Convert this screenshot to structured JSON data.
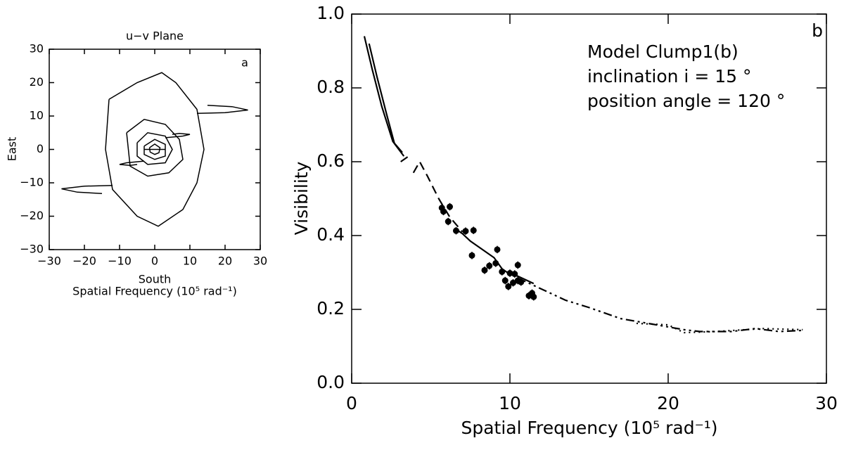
{
  "chart_data": [
    {
      "type": "line",
      "title": "u−v Plane",
      "label": "a",
      "xlabel": "South",
      "xlabel2": "Spatial Frequency (10⁵ rad⁻¹)",
      "ylabel": "East",
      "color": "#000000",
      "xlim": [
        -30,
        30
      ],
      "ylim": [
        -30,
        30
      ],
      "xticks": [
        {
          "value": -30,
          "label": "−30"
        },
        {
          "value": -20,
          "label": "−20"
        },
        {
          "value": -10,
          "label": "−10"
        },
        0,
        10,
        20,
        30
      ],
      "yticks": [
        {
          "value": -30,
          "label": "−30"
        },
        {
          "value": -20,
          "label": "−20"
        },
        {
          "value": -10,
          "label": "−10"
        },
        0,
        10,
        20,
        30
      ],
      "series": [
        {
          "x": [
            -13,
            -5,
            2,
            6,
            12,
            14,
            12,
            8,
            1,
            -5,
            -12,
            -14,
            -13
          ],
          "values": [
            15,
            20,
            23,
            20,
            12,
            0,
            -10,
            -18,
            -23,
            -20,
            -12,
            0,
            15
          ]
        },
        {
          "x": [
            -8,
            -3,
            3,
            7,
            8,
            4,
            -2,
            -7,
            -8
          ],
          "values": [
            5,
            9,
            7.5,
            3,
            -3,
            -7,
            -8,
            -5,
            5
          ]
        },
        {
          "x": [
            -5,
            -2,
            3,
            5,
            3,
            -2,
            -5,
            -5
          ],
          "values": [
            2,
            5,
            4,
            0,
            -4,
            -4.5,
            -2,
            2
          ]
        },
        {
          "x": [
            -3,
            0,
            3,
            3,
            0,
            -3,
            -3
          ],
          "values": [
            1,
            3,
            1.5,
            -2,
            -3,
            -1.5,
            1
          ]
        },
        {
          "x": [
            -1.5,
            0,
            1.5,
            1.2,
            0,
            -1.3,
            -1.5
          ],
          "values": [
            0.5,
            1.6,
            0.5,
            -1,
            -1.5,
            -0.8,
            0.5
          ]
        },
        {
          "x": [
            12,
            20,
            26.5,
            22,
            15
          ],
          "values": [
            10.8,
            11,
            11.8,
            12.8,
            13.2
          ]
        },
        {
          "x": [
            -12,
            -20,
            -26.5,
            -22,
            -15
          ],
          "values": [
            -10.8,
            -11,
            -11.8,
            -12.8,
            -13.2
          ]
        },
        {
          "x": [
            3,
            8,
            10,
            7,
            5
          ],
          "values": [
            3.5,
            4,
            4.5,
            4.8,
            4.5
          ]
        },
        {
          "x": [
            -3,
            -8,
            -10,
            -7,
            -5
          ],
          "values": [
            -3.5,
            -4,
            -4.5,
            -4.8,
            -4.5
          ]
        },
        {
          "x": [
            -3,
            3
          ],
          "values": [
            0,
            0
          ]
        }
      ]
    },
    {
      "type": "scatter",
      "label": "b",
      "annotations": [
        "Model Clump1(b)",
        "inclination i  =  15 °",
        "position angle  =  120 °"
      ],
      "xlabel": "Spatial Frequency (10⁵ rad⁻¹)",
      "ylabel": "Visibility",
      "color": "#000000",
      "xlim": [
        0,
        30
      ],
      "ylim": [
        0,
        1
      ],
      "xticks": [
        0,
        10,
        20,
        30
      ],
      "yticks": [
        {
          "value": 0,
          "label": "0.0"
        },
        0.2,
        0.4,
        0.6,
        0.8,
        {
          "value": 1,
          "label": "1.0"
        }
      ],
      "points": {
        "x": [
          5.7,
          5.8,
          6.2,
          6.1,
          6.6,
          7.2,
          7.7,
          7.6,
          8.4,
          8.7,
          9.1,
          9.2,
          9.5,
          9.7,
          9.9,
          10.0,
          10.2,
          10.3,
          10.5,
          10.5,
          10.7,
          11.2,
          11.5,
          11.4
        ],
        "values": [
          0.475,
          0.465,
          0.478,
          0.438,
          0.413,
          0.412,
          0.414,
          0.346,
          0.306,
          0.318,
          0.325,
          0.362,
          0.302,
          0.278,
          0.262,
          0.298,
          0.272,
          0.296,
          0.278,
          0.32,
          0.274,
          0.237,
          0.234,
          0.244
        ],
        "errors": [
          0.01,
          0.01,
          0.01,
          0.01,
          0.01,
          0.01,
          0.01,
          0.01,
          0.01,
          0.01,
          0.01,
          0.01,
          0.01,
          0.01,
          0.01,
          0.01,
          0.01,
          0.01,
          0.01,
          0.01,
          0.01,
          0.01,
          0.01,
          0.01
        ]
      },
      "series": [
        {
          "dash": "solid",
          "x": [
            0.8,
            1.3,
            1.9,
            2.6,
            3.3
          ],
          "values": [
            0.94,
            0.85,
            0.75,
            0.655,
            0.615
          ]
        },
        {
          "dash": "solid",
          "x": [
            1.1,
            1.6,
            2.2,
            2.7,
            3.2
          ],
          "values": [
            0.92,
            0.83,
            0.73,
            0.65,
            0.625
          ]
        },
        {
          "dash": "dashed",
          "x": [
            3.1,
            3.6,
            null,
            3.9,
            4.3,
            4.8,
            5.5,
            6.2,
            7.0
          ],
          "values": [
            0.6,
            0.615,
            null,
            0.57,
            0.6,
            0.56,
            0.5,
            0.45,
            0.41
          ]
        },
        {
          "dash": "solid",
          "x": [
            6.5,
            7.0,
            7.5,
            8.5,
            9.0,
            9.5,
            10.0,
            10.5,
            11.0,
            11.5
          ],
          "values": [
            0.42,
            0.405,
            0.385,
            0.355,
            0.34,
            0.31,
            0.295,
            0.29,
            0.28,
            0.27
          ]
        },
        {
          "dash": "dashdot",
          "x": [
            10.5,
            11.5,
            12.5,
            13.5,
            15,
            17,
            19,
            21,
            22,
            24,
            25.5,
            27,
            28.5
          ],
          "values": [
            0.285,
            0.265,
            0.245,
            0.225,
            0.205,
            0.175,
            0.16,
            0.145,
            0.14,
            0.14,
            0.148,
            0.14,
            0.143
          ]
        },
        {
          "dash": "dotted",
          "x": [
            18,
            20,
            21,
            23,
            26,
            28.5
          ],
          "values": [
            0.162,
            0.158,
            0.137,
            0.14,
            0.148,
            0.145
          ]
        }
      ]
    }
  ]
}
